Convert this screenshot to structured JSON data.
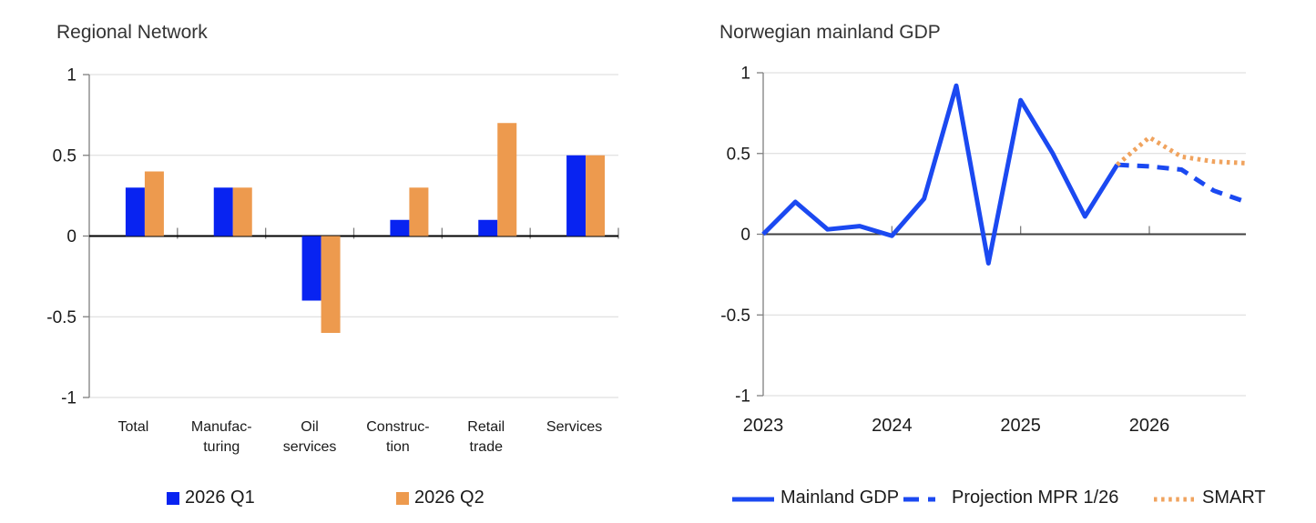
{
  "figure": {
    "background": "#ffffff",
    "left_title": "Regional Network",
    "right_title": "Norwegian mainland GDP"
  },
  "colors": {
    "bar_blue": "#0823f1",
    "bar_orange": "#ed9a4e",
    "line_blue": "#1b49f1",
    "line_orange_dotted": "#f0a35e",
    "gridline": "#d9d9d9",
    "axis_spine": "#7f7f7f",
    "zero_axis_left": "#000000",
    "zero_axis_right": "#3f3f3f",
    "text": "#1a1a1a"
  },
  "chart_data": [
    {
      "type": "bar",
      "title": "Regional Network",
      "categories": [
        "Total",
        "Manufacturing",
        "Oil services",
        "Construction",
        "Retail trade",
        "Services"
      ],
      "category_label_lines": [
        [
          "Total"
        ],
        [
          "Manufac-",
          "turing"
        ],
        [
          "Oil",
          "services"
        ],
        [
          "Construc-",
          "tion"
        ],
        [
          "Retail",
          "trade"
        ],
        [
          "Services"
        ]
      ],
      "series": [
        {
          "name": "2026 Q1",
          "color": "#0823f1",
          "values": [
            0.3,
            0.3,
            -0.4,
            0.1,
            0.1,
            0.5
          ]
        },
        {
          "name": "2026 Q2",
          "color": "#ed9a4e",
          "values": [
            0.4,
            0.3,
            -0.6,
            0.3,
            0.7,
            0.5
          ]
        }
      ],
      "xlabel": "",
      "ylabel": "",
      "ylim": [
        -1,
        1
      ],
      "yticks": [
        1,
        0.5,
        0,
        -0.5,
        -1
      ],
      "ytick_labels": [
        "1",
        "0.5",
        "0",
        "-0.5",
        "-1"
      ],
      "grid": true,
      "legend_position": "bottom"
    },
    {
      "type": "line",
      "title": "Norwegian mainland GDP",
      "x_unit": "quarters",
      "x_tick_labels": [
        "2023",
        "2024",
        "2025",
        "2026"
      ],
      "x_tick_quarter_index": [
        0,
        4,
        8,
        12
      ],
      "series": [
        {
          "name": "Mainland GDP",
          "line_style": "solid",
          "color": "#1b49f1",
          "x_quarter_index": [
            0,
            1,
            2,
            3,
            4,
            5,
            6,
            7,
            8,
            9,
            10,
            11
          ],
          "x_quarters": [
            "2023Q1",
            "2023Q2",
            "2023Q3",
            "2023Q4",
            "2024Q1",
            "2024Q2",
            "2024Q3",
            "2024Q4",
            "2025Q1",
            "2025Q2",
            "2025Q3",
            "2025Q4"
          ],
          "values": [
            0,
            0.2,
            0.03,
            0.05,
            -0.01,
            0.22,
            0.92,
            -0.18,
            0.83,
            0.5,
            0.11,
            0.43
          ]
        },
        {
          "name": "Projection MPR 1/26",
          "line_style": "dashed",
          "color": "#1b49f1",
          "x_quarter_index": [
            11,
            12,
            13,
            14,
            15
          ],
          "x_quarters": [
            "2025Q4",
            "2026Q1",
            "2026Q2",
            "2026Q3",
            "2026Q4"
          ],
          "values": [
            0.43,
            0.42,
            0.4,
            0.27,
            0.2
          ]
        },
        {
          "name": "SMART",
          "line_style": "dotted",
          "color": "#f0a35e",
          "x_quarter_index": [
            11,
            12,
            13,
            14,
            15
          ],
          "x_quarters": [
            "2025Q4",
            "2026Q1",
            "2026Q2",
            "2026Q3",
            "2026Q4"
          ],
          "values": [
            0.43,
            0.6,
            0.48,
            0.45,
            0.44
          ]
        }
      ],
      "xlabel": "",
      "ylabel": "",
      "ylim": [
        -1,
        1
      ],
      "yticks": [
        1,
        0.5,
        0,
        -0.5,
        -1
      ],
      "ytick_labels": [
        "1",
        "0.5",
        "0",
        "-0.5",
        "-1"
      ],
      "grid": true,
      "legend_position": "bottom"
    }
  ]
}
